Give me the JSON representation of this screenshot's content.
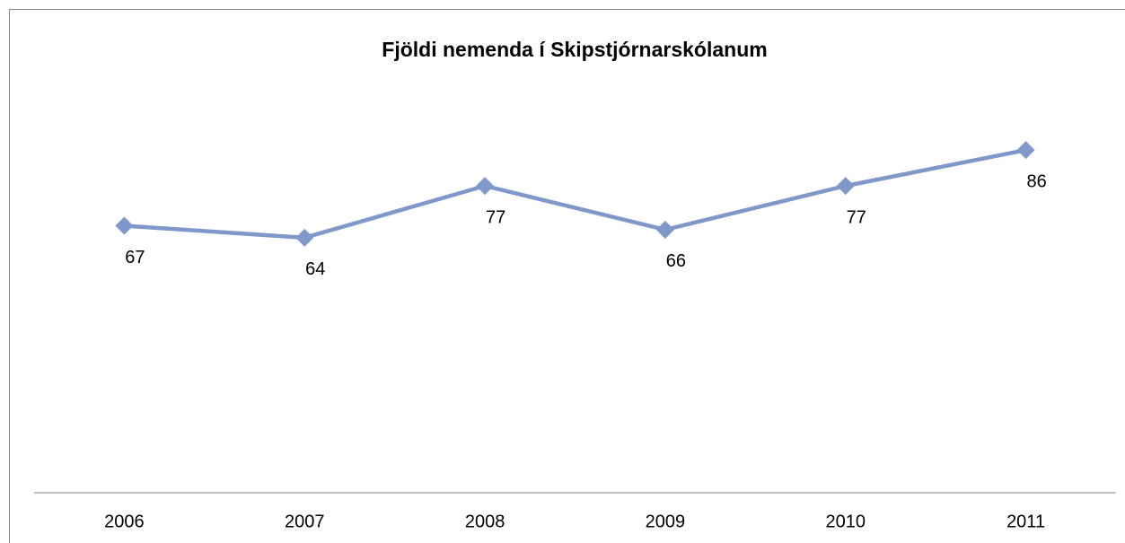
{
  "chart_data": {
    "type": "line",
    "title": "Fjöldi nemenda í Skipstjórnarskólanum",
    "categories": [
      "2006",
      "2007",
      "2008",
      "2009",
      "2010",
      "2011"
    ],
    "series": [
      {
        "name": "Fjöldi nemenda",
        "color": "#7f98c9",
        "values": [
          67,
          64,
          77,
          66,
          77,
          86
        ]
      }
    ],
    "ylim": [
      0,
      100
    ]
  }
}
